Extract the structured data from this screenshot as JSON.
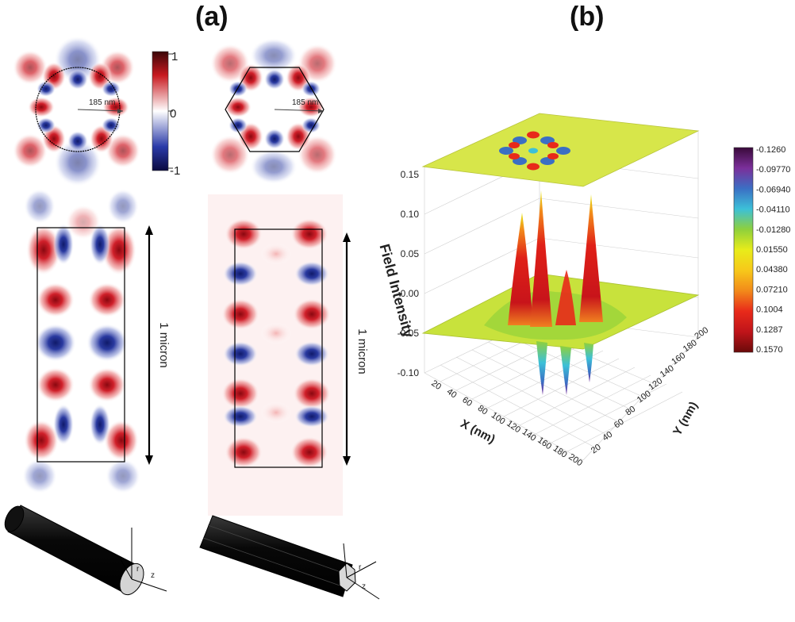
{
  "panel_a": {
    "label": "(a)",
    "colorbar_ticks": [
      "1",
      "0",
      "-1"
    ],
    "radius_label_circle": "185 nm",
    "radius_label_hexagon": "185 nm",
    "length_label_left": "1 micron",
    "length_label_right": "1 micron",
    "axis_r": "r",
    "axis_z": "z",
    "axis_r2": "r",
    "axis_z2": "z"
  },
  "panel_b": {
    "label": "(b)",
    "zlabel": "Field Intensity",
    "xlabel": "X (nm)",
    "ylabel": "Y (nm)"
  },
  "chart_data": {
    "type": "surface",
    "zlabel": "Field Intensity",
    "xlabel": "X (nm)",
    "ylabel": "Y (nm)",
    "z_ticks": [
      "0.15",
      "0.10",
      "0.05",
      "0.00",
      "-0.05",
      "-0.10"
    ],
    "x_ticks": [
      "20",
      "40",
      "60",
      "80",
      "100",
      "120",
      "140",
      "160",
      "180",
      "200"
    ],
    "y_ticks": [
      "20",
      "40",
      "60",
      "80",
      "100",
      "120",
      "140",
      "160",
      "180",
      "200"
    ],
    "colorbar_ticks": [
      "-0.1260",
      "-0.09770",
      "-0.06940",
      "-0.04110",
      "-0.01280",
      "0.01550",
      "0.04380",
      "0.07210",
      "0.1004",
      "0.1287",
      "0.1570"
    ],
    "colorbar_colors": [
      "#3a0a3a",
      "#7b2f9a",
      "#3b6fc4",
      "#3cc0d8",
      "#8fd03c",
      "#e8ec1a",
      "#f7c81a",
      "#f28a1a",
      "#e82a1a",
      "#c0141a",
      "#6a0a0a"
    ],
    "zlim": [
      -0.126,
      0.157
    ]
  }
}
